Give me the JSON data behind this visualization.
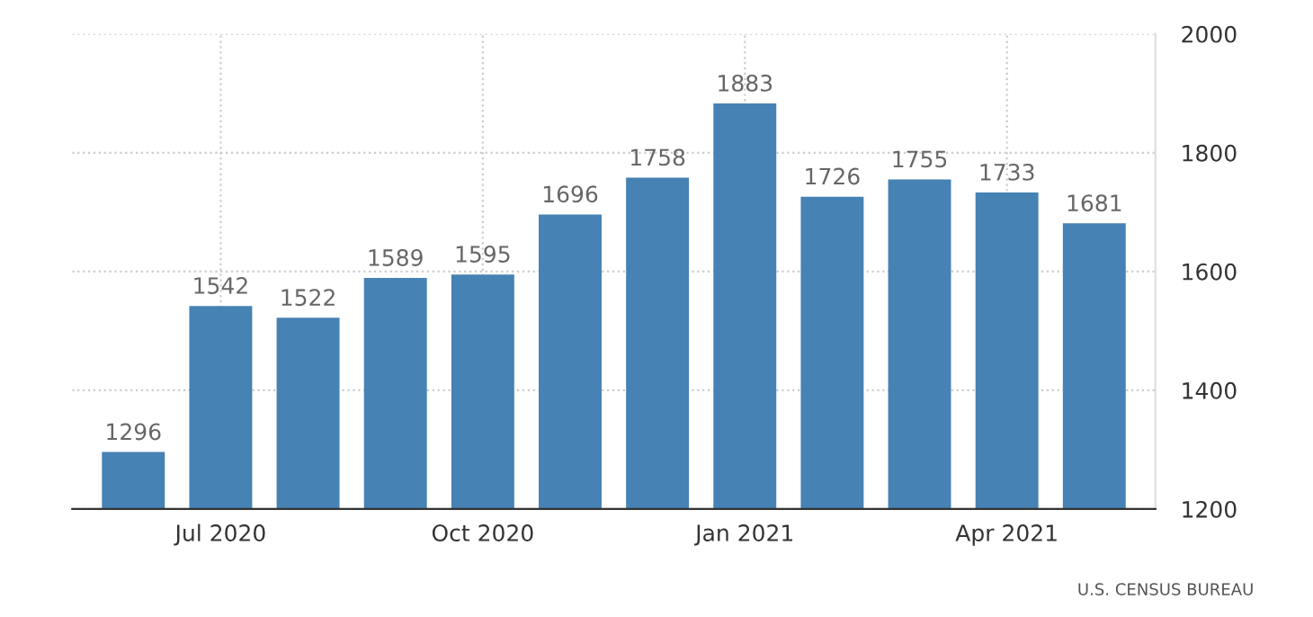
{
  "chart_data": {
    "type": "bar",
    "categories": [
      null,
      "Jul 2020",
      null,
      null,
      "Oct 2020",
      null,
      null,
      "Jan 2021",
      null,
      null,
      "Apr 2021",
      null
    ],
    "values": [
      1296,
      1542,
      1522,
      1589,
      1595,
      1696,
      1758,
      1883,
      1726,
      1755,
      1733,
      1681
    ],
    "color": "#4682b4",
    "ylim": [
      1200,
      2000
    ],
    "yticks": [
      1200,
      1400,
      1600,
      1800,
      2000
    ],
    "grid": true,
    "data_labels": true,
    "annotations": [
      "U.S. CENSUS BUREAU"
    ]
  }
}
